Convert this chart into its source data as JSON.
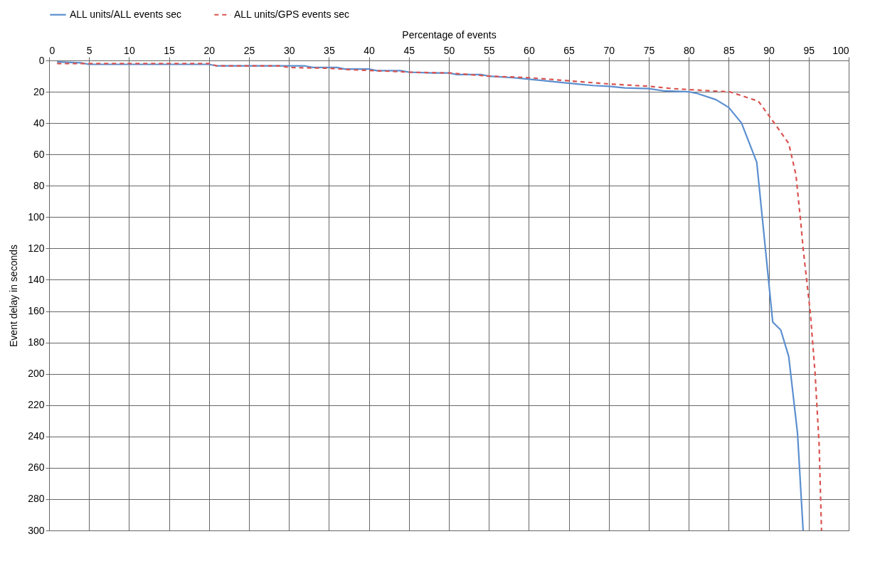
{
  "chart_data": {
    "type": "line",
    "xlabel": "Percentage of events",
    "ylabel": "Event delay in seconds",
    "xlim": [
      0,
      100
    ],
    "xticks": [
      0,
      5,
      10,
      15,
      20,
      25,
      30,
      35,
      40,
      45,
      50,
      55,
      60,
      65,
      70,
      75,
      80,
      85,
      90,
      95,
      100
    ],
    "ylim": [
      300,
      0
    ],
    "yticks": [
      0,
      20,
      40,
      60,
      80,
      100,
      120,
      140,
      160,
      180,
      200,
      220,
      240,
      260,
      280,
      300
    ],
    "grid": true,
    "legend": "top",
    "marker": "none",
    "series": [
      {
        "name": "ALL units/ALL events sec",
        "color": "#5b8fd0",
        "line_style": "solid",
        "x": [
          1,
          4,
          5,
          18,
          20,
          21,
          30,
          32,
          33,
          36,
          37,
          40,
          41,
          44,
          45,
          48,
          50,
          51,
          54,
          55,
          58,
          60,
          62,
          64,
          66,
          68,
          70,
          72,
          75,
          77,
          80,
          81,
          83.4,
          85,
          86.6,
          88.5,
          90.5,
          91.5,
          92.5,
          93.6,
          94.3
        ],
        "values": [
          1,
          1.5,
          2.5,
          2.5,
          2.5,
          3.5,
          3.5,
          3.5,
          4.5,
          4.5,
          5.5,
          5.5,
          6.5,
          6.5,
          7.5,
          8,
          8,
          9,
          9,
          10,
          11,
          12,
          13,
          14,
          15,
          16,
          16.5,
          17.5,
          18,
          19.5,
          20,
          21,
          25,
          30,
          40,
          65,
          167,
          172,
          189,
          238,
          300
        ]
      },
      {
        "name": "ALL units/GPS events sec",
        "color": "#d9534f",
        "line_style": "dashed",
        "x": [
          1,
          20,
          21,
          29,
          30,
          35,
          38,
          43,
          45,
          50,
          55,
          60,
          65,
          70,
          75,
          78,
          83,
          85.1,
          88.7,
          90.7,
          92.5,
          93.4,
          94,
          94.3,
          95.2,
          95.8,
          96.3,
          96.6
        ],
        "values": [
          2,
          2,
          3.5,
          3.5,
          4.5,
          5,
          6,
          7,
          7.5,
          8,
          10,
          11,
          13,
          15,
          16.5,
          18,
          19.5,
          20,
          26,
          40,
          53,
          73,
          103,
          120,
          161,
          200,
          245,
          300
        ]
      }
    ]
  }
}
